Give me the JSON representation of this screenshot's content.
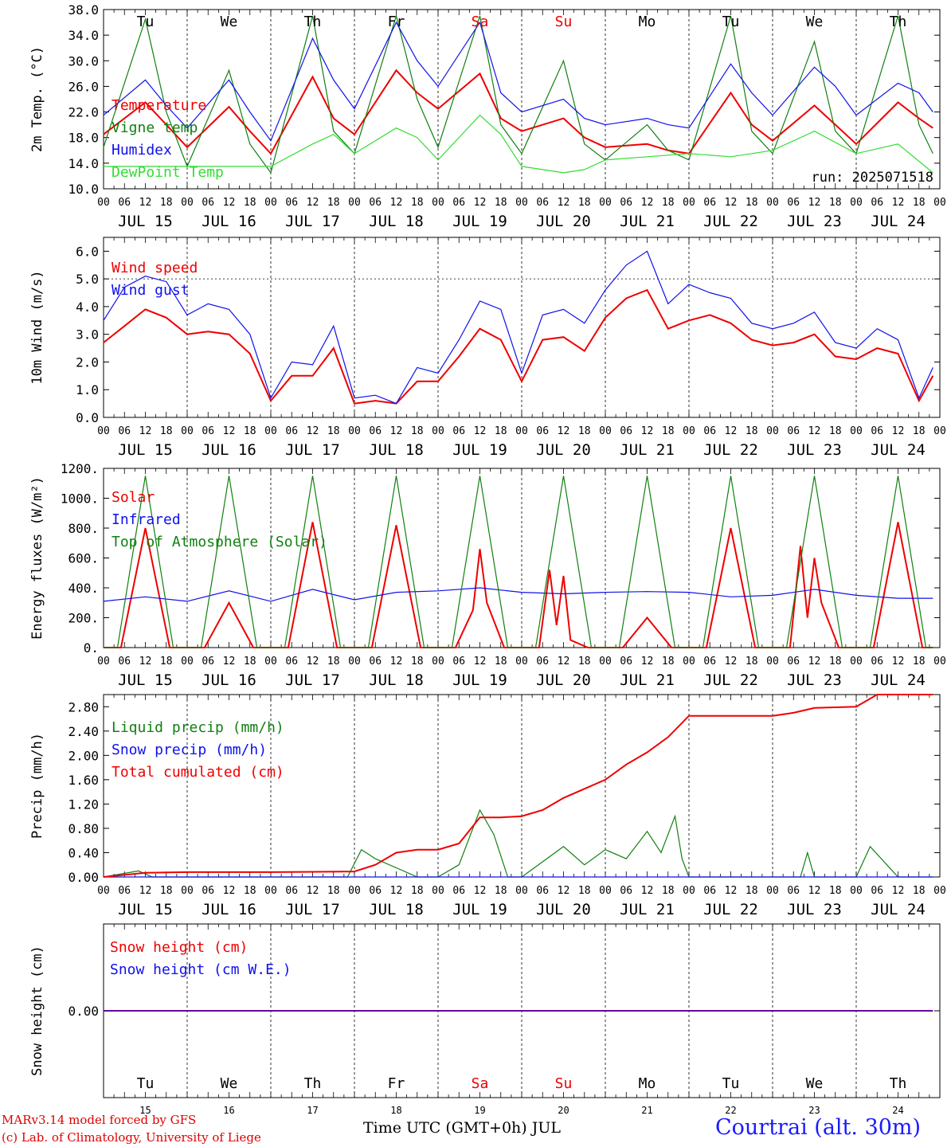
{
  "colors": {
    "red": "#ee0000",
    "green": "#108010",
    "blue": "#1010ee",
    "lightgreen": "#33dd33"
  },
  "days": [
    "Tu",
    "We",
    "Th",
    "Fr",
    "Sa",
    "Su",
    "Mo",
    "Tu",
    "We",
    "Th"
  ],
  "weekend_day_indices": [
    4,
    5
  ],
  "date_labels": [
    "JUL 15",
    "JUL 16",
    "JUL 17",
    "JUL 18",
    "JUL 19",
    "JUL 20",
    "JUL 21",
    "JUL 22",
    "JUL 23",
    "JUL 24"
  ],
  "hour_labels": [
    "00",
    "06",
    "12",
    "18"
  ],
  "day_numbers": [
    "15",
    "16",
    "17",
    "18",
    "19",
    "20",
    "21",
    "22",
    "23",
    "24"
  ],
  "footer": {
    "credit_line1": "MARv3.14 model forced by GFS",
    "credit_line2": "(c) Lab. of Climatology, University of Liege",
    "xlabel": "Time UTC (GMT+0h) JUL",
    "station": "Courtrai (alt. 30m)"
  },
  "chart_data": [
    {
      "type": "line",
      "ylabel": "2m Temp. (°C)",
      "ylim": [
        10,
        38
      ],
      "yticks": [
        "10.0",
        "14.0",
        "18.0",
        "22.0",
        "26.0",
        "30.0",
        "34.0",
        "38.0"
      ],
      "run_label": "run: 2025071518",
      "series": [
        {
          "name": "Temperature",
          "color": "red",
          "x": [
            0,
            12,
            18,
            24,
            36,
            42,
            48,
            60,
            66,
            72,
            84,
            90,
            96,
            108,
            114,
            120,
            132,
            138,
            144,
            156,
            162,
            168,
            180,
            186,
            192,
            204,
            210,
            216,
            228,
            234,
            238
          ],
          "y": [
            18.5,
            23.5,
            20,
            16.5,
            22.8,
            19,
            15.5,
            27.5,
            21,
            18.5,
            28.5,
            25,
            22.5,
            28,
            21,
            19,
            21,
            18,
            16.5,
            17,
            16,
            15.5,
            25,
            20,
            17.5,
            23,
            20,
            17,
            23.5,
            21,
            19.5
          ]
        },
        {
          "name": "Vigne temp",
          "color": "green",
          "x": [
            0,
            12,
            18,
            24,
            36,
            42,
            48,
            60,
            66,
            72,
            84,
            90,
            96,
            108,
            114,
            120,
            132,
            138,
            144,
            156,
            162,
            168,
            180,
            186,
            192,
            204,
            210,
            216,
            228,
            234,
            238
          ],
          "y": [
            16.5,
            36.5,
            22,
            13.5,
            28.5,
            17,
            12.5,
            37,
            19,
            15.5,
            37,
            24,
            16.5,
            37,
            20,
            15.5,
            30,
            17,
            14.5,
            20,
            16,
            14.5,
            37,
            19,
            15.5,
            33,
            19,
            15.5,
            37,
            20,
            15.5
          ]
        },
        {
          "name": "Humidex",
          "color": "blue",
          "x": [
            0,
            12,
            18,
            24,
            36,
            42,
            48,
            60,
            66,
            72,
            84,
            90,
            96,
            108,
            114,
            120,
            132,
            138,
            144,
            156,
            162,
            168,
            180,
            186,
            192,
            204,
            210,
            216,
            228,
            234,
            238
          ],
          "y": [
            21.5,
            27,
            23,
            19.5,
            27,
            22,
            17.5,
            33.5,
            27,
            22.5,
            36,
            30,
            26,
            36,
            25,
            22,
            24,
            21,
            20,
            21,
            20,
            19.5,
            29.5,
            25,
            21.5,
            29,
            26,
            21.5,
            26.5,
            25,
            22
          ]
        },
        {
          "name": "DewPoint Temp",
          "color": "lightgreen",
          "x": [
            0,
            12,
            24,
            36,
            48,
            60,
            66,
            72,
            84,
            90,
            96,
            108,
            114,
            120,
            132,
            138,
            144,
            156,
            168,
            180,
            192,
            204,
            216,
            228,
            238
          ],
          "y": [
            13.5,
            13.5,
            13.5,
            13.5,
            13.5,
            17,
            18.5,
            15.5,
            19.5,
            18,
            14.5,
            21.5,
            18.5,
            13.5,
            12.5,
            13,
            14.5,
            15,
            15.5,
            15,
            16,
            19,
            15.5,
            17,
            12.5
          ]
        }
      ]
    },
    {
      "type": "line",
      "ylabel": "10m Wind (m/s)",
      "ylim": [
        0,
        6.5
      ],
      "yticks": [
        "0.0",
        "1.0",
        "2.0",
        "3.0",
        "4.0",
        "5.0",
        "6.0"
      ],
      "series": [
        {
          "name": "Wind speed",
          "color": "red",
          "x": [
            0,
            6,
            12,
            18,
            24,
            30,
            36,
            42,
            48,
            54,
            60,
            66,
            72,
            78,
            84,
            90,
            96,
            102,
            108,
            114,
            120,
            126,
            132,
            138,
            144,
            150,
            156,
            162,
            168,
            174,
            180,
            186,
            192,
            198,
            204,
            210,
            216,
            222,
            228,
            234,
            238
          ],
          "y": [
            2.7,
            3.3,
            3.9,
            3.6,
            3.0,
            3.1,
            3.0,
            2.3,
            0.6,
            1.5,
            1.5,
            2.5,
            0.5,
            0.6,
            0.5,
            1.3,
            1.3,
            2.2,
            3.2,
            2.8,
            1.3,
            2.8,
            2.9,
            2.4,
            3.6,
            4.3,
            4.6,
            3.2,
            3.5,
            3.7,
            3.4,
            2.8,
            2.6,
            2.7,
            3.0,
            2.2,
            2.1,
            2.5,
            2.3,
            0.6,
            1.5
          ]
        },
        {
          "name": "Wind gust",
          "color": "blue",
          "x": [
            0,
            6,
            12,
            18,
            24,
            30,
            36,
            42,
            48,
            54,
            60,
            66,
            72,
            78,
            84,
            90,
            96,
            102,
            108,
            114,
            120,
            126,
            132,
            138,
            144,
            150,
            156,
            162,
            168,
            174,
            180,
            186,
            192,
            198,
            204,
            210,
            216,
            222,
            228,
            234,
            238
          ],
          "y": [
            3.5,
            4.7,
            5.1,
            4.9,
            3.7,
            4.1,
            3.9,
            3.0,
            0.7,
            2.0,
            1.9,
            3.3,
            0.7,
            0.8,
            0.5,
            1.8,
            1.6,
            2.8,
            4.2,
            3.9,
            1.6,
            3.7,
            3.9,
            3.4,
            4.6,
            5.5,
            6.0,
            4.1,
            4.8,
            4.5,
            4.3,
            3.4,
            3.2,
            3.4,
            3.8,
            2.7,
            2.5,
            3.2,
            2.8,
            0.7,
            1.8
          ]
        }
      ]
    },
    {
      "type": "line",
      "ylabel": "Energy fluxes (W/m²)",
      "ylim": [
        0,
        1200
      ],
      "yticks": [
        "0.",
        "200.",
        "400.",
        "600.",
        "800.",
        "1000.",
        "1200."
      ],
      "series": [
        {
          "name": "Solar",
          "color": "red",
          "x": [
            0,
            5,
            12,
            19,
            24,
            29,
            36,
            43,
            48,
            53,
            60,
            67,
            72,
            77,
            84,
            91,
            96,
            101,
            106,
            108,
            110,
            115,
            120,
            125,
            128,
            130,
            132,
            134,
            139,
            144,
            149,
            156,
            163,
            168,
            173,
            180,
            187,
            192,
            197,
            200,
            202,
            204,
            206,
            211,
            216,
            221,
            228,
            235,
            238
          ],
          "y": [
            0,
            0,
            800,
            0,
            0,
            0,
            300,
            0,
            0,
            0,
            840,
            0,
            0,
            0,
            820,
            0,
            0,
            0,
            250,
            660,
            300,
            0,
            0,
            0,
            520,
            150,
            480,
            50,
            0,
            0,
            0,
            200,
            0,
            0,
            0,
            800,
            0,
            0,
            0,
            680,
            200,
            600,
            300,
            0,
            0,
            0,
            840,
            0,
            0
          ]
        },
        {
          "name": "Infrared",
          "color": "blue",
          "x": [
            0,
            12,
            24,
            36,
            48,
            60,
            72,
            84,
            96,
            108,
            120,
            132,
            144,
            156,
            168,
            180,
            192,
            204,
            216,
            228,
            238
          ],
          "y": [
            310,
            340,
            310,
            380,
            310,
            390,
            320,
            370,
            380,
            400,
            370,
            360,
            370,
            375,
            370,
            340,
            350,
            390,
            350,
            330,
            330
          ]
        },
        {
          "name": "Top of Atmosphere (Solar)",
          "color": "green",
          "x": [
            0,
            4,
            12,
            20,
            24,
            28,
            36,
            44,
            48,
            52,
            60,
            68,
            72,
            76,
            84,
            92,
            96,
            100,
            108,
            116,
            120,
            124,
            132,
            140,
            144,
            148,
            156,
            164,
            168,
            172,
            180,
            188,
            192,
            196,
            204,
            212,
            216,
            220,
            228,
            236,
            238
          ],
          "y": [
            0,
            0,
            1150,
            0,
            0,
            0,
            1150,
            0,
            0,
            0,
            1150,
            0,
            0,
            0,
            1150,
            0,
            0,
            0,
            1150,
            0,
            0,
            0,
            1150,
            0,
            0,
            0,
            1150,
            0,
            0,
            0,
            1150,
            0,
            0,
            0,
            1150,
            0,
            0,
            0,
            1150,
            0,
            0
          ]
        }
      ]
    },
    {
      "type": "line",
      "ylabel": "Precip (mm/h)",
      "ylim": [
        0,
        3.0
      ],
      "yticks": [
        "0.00",
        "0.40",
        "0.80",
        "1.20",
        "1.60",
        "2.00",
        "2.40",
        "2.80"
      ],
      "series": [
        {
          "name": "Liquid precip (mm/h)",
          "color": "green",
          "x": [
            0,
            10,
            14,
            20,
            70,
            74,
            78,
            84,
            90,
            96,
            102,
            108,
            112,
            116,
            120,
            126,
            132,
            138,
            144,
            150,
            156,
            160,
            164,
            166,
            168,
            190,
            200,
            202,
            204,
            212,
            216,
            220,
            228,
            238
          ],
          "y": [
            0,
            0.1,
            0,
            0,
            0,
            0.45,
            0.3,
            0.15,
            0,
            0,
            0.2,
            1.1,
            0.7,
            0,
            0,
            0.25,
            0.5,
            0.2,
            0.45,
            0.3,
            0.75,
            0.4,
            1.0,
            0.3,
            0,
            0,
            0,
            0.4,
            0,
            0,
            0,
            0.5,
            0,
            0
          ]
        },
        {
          "name": "Snow precip (mm/h)",
          "color": "blue",
          "x": [
            0,
            238
          ],
          "y": [
            0,
            0
          ]
        },
        {
          "name": "Total cumulated (cm)",
          "color": "red",
          "x": [
            0,
            12,
            24,
            48,
            72,
            78,
            84,
            90,
            96,
            102,
            108,
            114,
            120,
            126,
            132,
            138,
            144,
            150,
            156,
            162,
            168,
            180,
            192,
            198,
            204,
            216,
            222,
            238
          ],
          "y": [
            0,
            0.07,
            0.08,
            0.08,
            0.09,
            0.2,
            0.4,
            0.45,
            0.45,
            0.55,
            0.98,
            0.98,
            1.0,
            1.1,
            1.3,
            1.45,
            1.6,
            1.85,
            2.05,
            2.3,
            2.65,
            2.65,
            2.65,
            2.7,
            2.78,
            2.8,
            3.0,
            3.0
          ]
        }
      ]
    },
    {
      "type": "line",
      "ylabel": "Snow height (cm)",
      "ylim": [
        -1,
        1
      ],
      "yticks": [
        "0.00"
      ],
      "series": [
        {
          "name": "Snow height (cm)",
          "color": "red",
          "x": [
            0,
            238
          ],
          "y": [
            0,
            0
          ]
        },
        {
          "name": "Snow height (cm W.E.)",
          "color": "blue",
          "x": [
            0,
            238
          ],
          "y": [
            0,
            0
          ]
        }
      ]
    }
  ]
}
